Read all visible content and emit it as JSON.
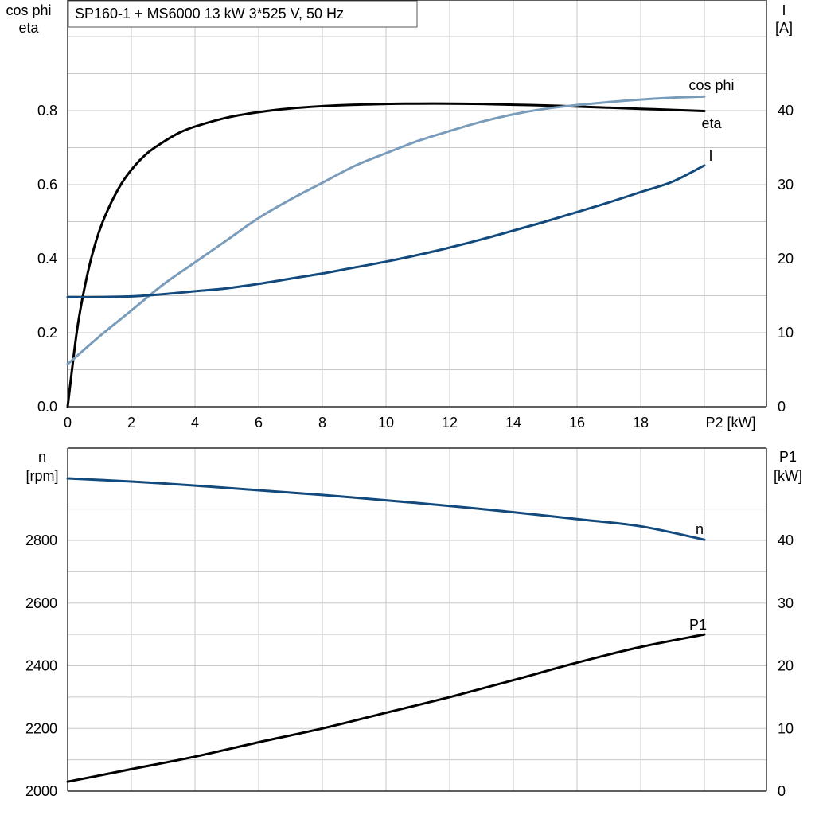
{
  "title": "SP160-1 + MS6000   13 kW   3*525 V, 50 Hz",
  "colors": {
    "eta": "#000000",
    "cos_phi": "#7a9cbb",
    "current": "#124a7e",
    "speed": "#124a7e",
    "p1": "#000000"
  },
  "chart_data": [
    {
      "type": "line",
      "x_label": "P2 [kW]",
      "x_ticks": [
        "0",
        "2",
        "4",
        "6",
        "8",
        "10",
        "12",
        "14",
        "16",
        "18"
      ],
      "xlim": [
        0,
        22
      ],
      "left_axis": {
        "label_line1": "cos phi",
        "label_line2": "eta",
        "ylim": [
          0,
          1.0
        ],
        "ticks": [
          "0.0",
          "0.2",
          "0.4",
          "0.6",
          "0.8"
        ]
      },
      "right_axis": {
        "label_line1": "I",
        "label_line2": "[A]",
        "ylim": [
          0,
          50
        ],
        "ticks": [
          "0",
          "10",
          "20",
          "30",
          "40"
        ]
      },
      "grid": true,
      "series": [
        {
          "name": "eta",
          "axis": "left",
          "x": [
            0,
            0.3,
            0.6,
            0.9,
            1.2,
            1.6,
            2.0,
            2.5,
            3.0,
            3.5,
            4,
            5,
            6,
            7,
            8,
            9,
            10,
            11,
            12,
            13,
            14,
            15,
            16,
            17,
            18,
            19,
            20
          ],
          "y": [
            0,
            0.21,
            0.35,
            0.45,
            0.52,
            0.59,
            0.64,
            0.685,
            0.715,
            0.74,
            0.757,
            0.781,
            0.796,
            0.806,
            0.812,
            0.816,
            0.818,
            0.819,
            0.819,
            0.818,
            0.816,
            0.814,
            0.811,
            0.808,
            0.805,
            0.802,
            0.799
          ]
        },
        {
          "name": "cos phi",
          "axis": "left",
          "x": [
            0,
            1,
            2,
            3,
            4,
            5,
            6,
            7,
            8,
            9,
            10,
            11,
            12,
            13,
            14,
            15,
            16,
            17,
            18,
            19,
            20
          ],
          "y": [
            0.115,
            0.19,
            0.26,
            0.33,
            0.39,
            0.45,
            0.51,
            0.56,
            0.605,
            0.65,
            0.685,
            0.718,
            0.745,
            0.77,
            0.79,
            0.805,
            0.815,
            0.823,
            0.83,
            0.835,
            0.838
          ]
        },
        {
          "name": "I",
          "axis": "right",
          "x": [
            0,
            1,
            2,
            3,
            4,
            5,
            6,
            7,
            8,
            9,
            10,
            11,
            12,
            13,
            14,
            15,
            16,
            17,
            18,
            19,
            20
          ],
          "y": [
            14.8,
            14.8,
            14.9,
            15.2,
            15.6,
            16,
            16.6,
            17.3,
            18,
            18.8,
            19.6,
            20.5,
            21.5,
            22.6,
            23.8,
            25,
            26.3,
            27.6,
            29,
            30.4,
            32.6
          ]
        }
      ]
    },
    {
      "type": "line",
      "x_ticks": [],
      "xlim": [
        0,
        22
      ],
      "left_axis": {
        "label_line1": "n",
        "label_line2": "[rpm]",
        "ylim": [
          2000,
          2960
        ],
        "ticks": [
          "2000",
          "2200",
          "2400",
          "2600",
          "2800"
        ]
      },
      "right_axis": {
        "label_line1": "P1",
        "label_line2": "[kW]",
        "ylim": [
          0,
          48
        ],
        "ticks": [
          "0",
          "10",
          "20",
          "30",
          "40"
        ]
      },
      "grid": true,
      "series": [
        {
          "name": "n",
          "axis": "left",
          "x": [
            0,
            2,
            4,
            6,
            8,
            10,
            12,
            14,
            16,
            18,
            20
          ],
          "y": [
            2998,
            2988,
            2975,
            2960,
            2945,
            2928,
            2910,
            2890,
            2868,
            2845,
            2802
          ]
        },
        {
          "name": "P1",
          "axis": "right",
          "x": [
            0,
            2,
            4,
            6,
            8,
            10,
            12,
            14,
            16,
            18,
            20
          ],
          "y": [
            1.5,
            3.5,
            5.5,
            7.8,
            10,
            12.5,
            15,
            17.7,
            20.5,
            23,
            25
          ]
        }
      ]
    }
  ]
}
